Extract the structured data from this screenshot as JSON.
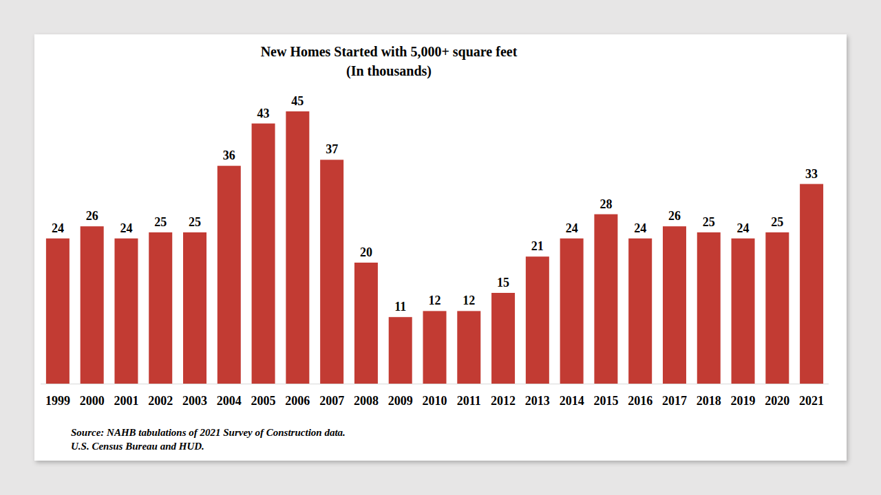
{
  "chart_data": {
    "type": "bar",
    "title": "New Homes Started with 5,000+ square feet",
    "subtitle": "(In thousands)",
    "categories": [
      "1999",
      "2000",
      "2001",
      "2002",
      "2003",
      "2004",
      "2005",
      "2006",
      "2007",
      "2008",
      "2009",
      "2010",
      "2011",
      "2012",
      "2013",
      "2014",
      "2015",
      "2016",
      "2017",
      "2018",
      "2019",
      "2020",
      "2021"
    ],
    "values": [
      24,
      26,
      24,
      25,
      25,
      36,
      43,
      45,
      37,
      20,
      11,
      12,
      12,
      15,
      21,
      24,
      28,
      24,
      26,
      25,
      24,
      25,
      33
    ],
    "color": "#c23b33",
    "ylim": [
      0,
      45
    ],
    "grid": false,
    "data_labels": true,
    "tick_labels": "x",
    "annotations": [
      "Source: NAHB tabulations of 2021 Survey of Construction data.",
      "U.S. Census Bureau and HUD."
    ]
  }
}
